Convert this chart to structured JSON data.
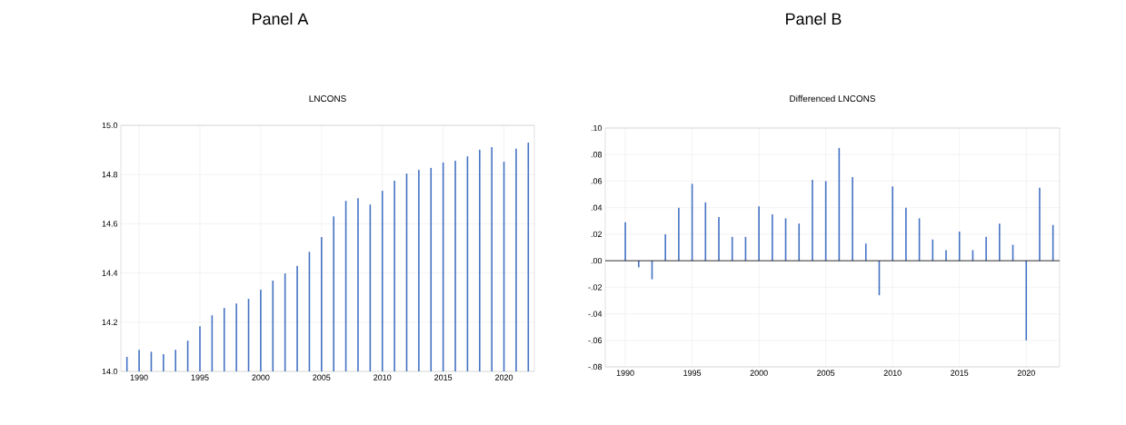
{
  "chart_data": [
    {
      "type": "bar",
      "title": "Panel A",
      "subtitle": "LNCONS",
      "color": "#4472c4",
      "x": [
        1989,
        1990,
        1991,
        1992,
        1993,
        1994,
        1995,
        1996,
        1997,
        1998,
        1999,
        2000,
        2001,
        2002,
        2003,
        2004,
        2005,
        2006,
        2007,
        2008,
        2009,
        2010,
        2011,
        2012,
        2013,
        2014,
        2015,
        2016,
        2017,
        2018,
        2019,
        2020,
        2021,
        2022
      ],
      "values": [
        14.059,
        14.088,
        14.08,
        14.07,
        14.088,
        14.125,
        14.184,
        14.228,
        14.258,
        14.276,
        14.295,
        14.332,
        14.369,
        14.398,
        14.429,
        14.486,
        14.546,
        14.63,
        14.693,
        14.704,
        14.678,
        14.734,
        14.775,
        14.804,
        14.819,
        14.827,
        14.849,
        14.856,
        14.874,
        14.901,
        14.911,
        14.852,
        14.905,
        14.93
      ],
      "xlim": [
        1988.5,
        2022.5
      ],
      "xticks": [
        1990,
        1995,
        2000,
        2005,
        2010,
        2015,
        2020
      ],
      "ylim": [
        14,
        15
      ],
      "yticks": [
        {
          "value": 14,
          "label": "14.0"
        },
        {
          "value": 14.2,
          "label": "14.2"
        },
        {
          "value": 14.4,
          "label": "14.4"
        },
        {
          "value": 14.6,
          "label": "14.6"
        },
        {
          "value": 14.8,
          "label": "14.8"
        },
        {
          "value": 15,
          "label": "15.0"
        }
      ],
      "grid": true
    },
    {
      "type": "bar",
      "title": "Panel B",
      "subtitle": "Differenced LNCONS",
      "color": "#4472c4",
      "x": [
        1990,
        1991,
        1992,
        1993,
        1994,
        1995,
        1996,
        1997,
        1998,
        1999,
        2000,
        2001,
        2002,
        2003,
        2004,
        2005,
        2006,
        2007,
        2008,
        2009,
        2010,
        2011,
        2012,
        2013,
        2014,
        2015,
        2016,
        2017,
        2018,
        2019,
        2020,
        2021,
        2022
      ],
      "values": [
        0.029,
        -0.005,
        -0.014,
        0.02,
        0.04,
        0.058,
        0.044,
        0.033,
        0.018,
        0.018,
        0.041,
        0.035,
        0.032,
        0.028,
        0.061,
        0.06,
        0.085,
        0.063,
        0.013,
        -0.026,
        0.056,
        0.04,
        0.032,
        0.016,
        0.008,
        0.022,
        0.008,
        0.018,
        0.028,
        0.012,
        -0.06,
        0.055,
        0.027
      ],
      "xlim": [
        1988.5,
        2022.5
      ],
      "xticks": [
        1990,
        1995,
        2000,
        2005,
        2010,
        2015,
        2020
      ],
      "ylim": [
        -0.08,
        0.1
      ],
      "yticks": [
        {
          "value": -0.08,
          "label": "-.08"
        },
        {
          "value": -0.06,
          "label": "-.06"
        },
        {
          "value": -0.04,
          "label": "-.04"
        },
        {
          "value": -0.02,
          "label": "-.02"
        },
        {
          "value": 0,
          "label": ".00"
        },
        {
          "value": 0.02,
          "label": ".02"
        },
        {
          "value": 0.04,
          "label": ".04"
        },
        {
          "value": 0.06,
          "label": ".06"
        },
        {
          "value": 0.08,
          "label": ".08"
        },
        {
          "value": 0.1,
          "label": ".10"
        }
      ],
      "grid": true,
      "ref_lines": [
        {
          "axis": "y",
          "value": 0,
          "color": "#000000"
        }
      ]
    }
  ]
}
